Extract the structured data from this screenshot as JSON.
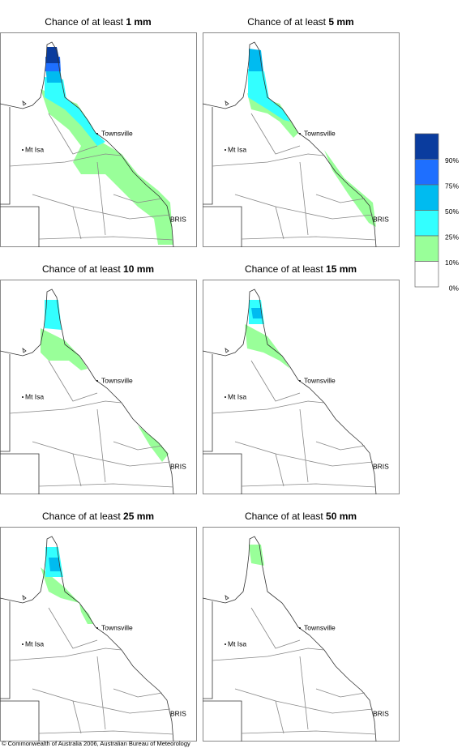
{
  "panels": [
    {
      "title_prefix": "Chance of at least",
      "amount": "1 mm"
    },
    {
      "title_prefix": "Chance of at least",
      "amount": "5 mm"
    },
    {
      "title_prefix": "Chance of at least",
      "amount": "10 mm"
    },
    {
      "title_prefix": "Chance of at least",
      "amount": "15 mm"
    },
    {
      "title_prefix": "Chance of at least",
      "amount": "25 mm"
    },
    {
      "title_prefix": "Chance of at least",
      "amount": "50 mm"
    }
  ],
  "places": {
    "townsville": "Townsville",
    "mt_isa": "Mt Isa",
    "brisbane": "BRIS"
  },
  "legend": [
    {
      "label": "90%",
      "color": "#0a3c9e"
    },
    {
      "label": "75%",
      "color": "#1e6fff"
    },
    {
      "label": "50%",
      "color": "#00bbf0"
    },
    {
      "label": "25%",
      "color": "#33ffff"
    },
    {
      "label": "10%",
      "color": "#99ff99"
    },
    {
      "label": "0%",
      "color": "#ffffff"
    }
  ],
  "copyright": "© Commonwealth of Australia 2006, Australian Bureau of Meteorology"
}
